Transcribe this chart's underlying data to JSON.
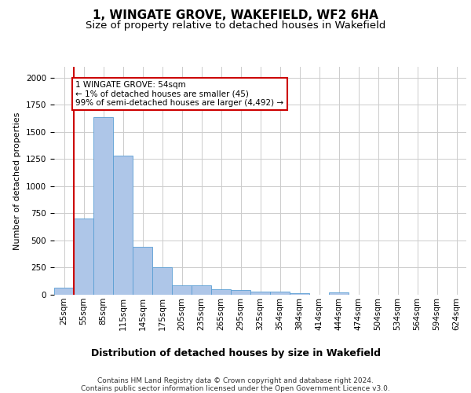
{
  "title": "1, WINGATE GROVE, WAKEFIELD, WF2 6HA",
  "subtitle": "Size of property relative to detached houses in Wakefield",
  "xlabel": "Distribution of detached houses by size in Wakefield",
  "ylabel": "Number of detached properties",
  "categories": [
    "25sqm",
    "55sqm",
    "85sqm",
    "115sqm",
    "145sqm",
    "175sqm",
    "205sqm",
    "235sqm",
    "265sqm",
    "295sqm",
    "325sqm",
    "354sqm",
    "384sqm",
    "414sqm",
    "444sqm",
    "474sqm",
    "504sqm",
    "534sqm",
    "564sqm",
    "594sqm",
    "624sqm"
  ],
  "values": [
    65,
    700,
    1635,
    1285,
    445,
    255,
    90,
    90,
    50,
    40,
    30,
    30,
    15,
    0,
    20,
    0,
    0,
    0,
    0,
    0,
    0
  ],
  "bar_color": "#aec6e8",
  "bar_edge_color": "#5a9fd4",
  "annotation_text": "1 WINGATE GROVE: 54sqm\n← 1% of detached houses are smaller (45)\n99% of semi-detached houses are larger (4,492) →",
  "annotation_box_color": "#ffffff",
  "annotation_box_edge_color": "#cc0000",
  "vline_color": "#cc0000",
  "ylim": [
    0,
    2100
  ],
  "grid_color": "#cccccc",
  "footer_text": "Contains HM Land Registry data © Crown copyright and database right 2024.\nContains public sector information licensed under the Open Government Licence v3.0.",
  "title_fontsize": 11,
  "subtitle_fontsize": 9.5,
  "xlabel_fontsize": 9,
  "ylabel_fontsize": 8,
  "tick_fontsize": 7.5,
  "footer_fontsize": 6.5
}
